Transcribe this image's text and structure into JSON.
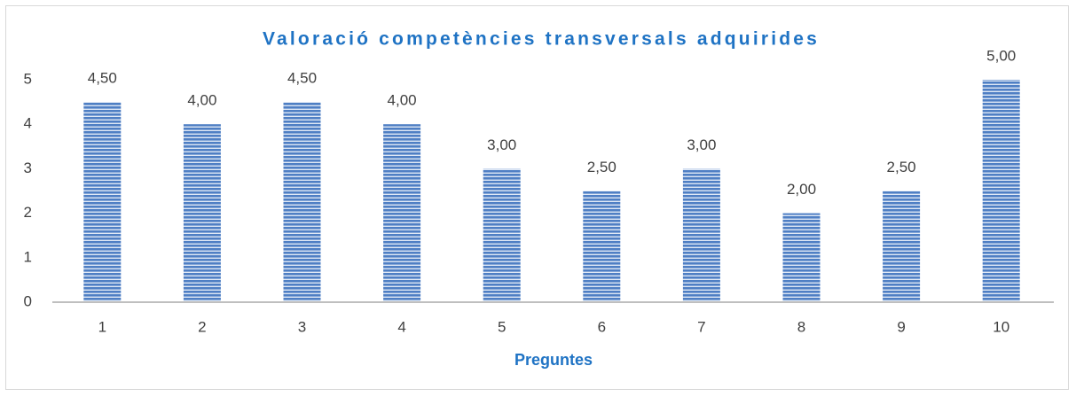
{
  "chart_data": {
    "type": "bar",
    "title": "Valoració competències transversals adquirides",
    "x_label": "Preguntes",
    "categories": [
      "1",
      "2",
      "3",
      "4",
      "5",
      "6",
      "7",
      "8",
      "9",
      "10"
    ],
    "values": [
      4.5,
      4,
      4.5,
      4,
      3,
      2.5,
      3,
      2,
      2.5,
      5
    ],
    "value_labels": [
      "4,50",
      "4,00",
      "4,50",
      "4,00",
      "3,00",
      "2,50",
      "3,00",
      "2,00",
      "2,50",
      "5,00"
    ],
    "color": "#4f7fc4",
    "ylim": [
      0,
      5
    ],
    "yticks": [
      0,
      1,
      2,
      3,
      4,
      5
    ],
    "grid": false
  }
}
